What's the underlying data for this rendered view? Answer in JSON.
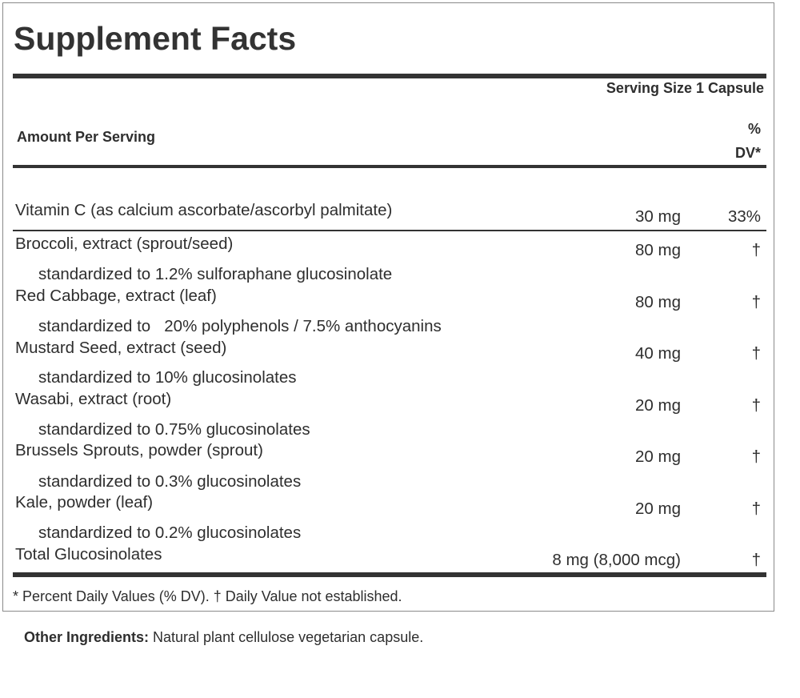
{
  "title": "Supplement Facts",
  "serving_size": "Serving Size 1 Capsule",
  "amount_per_serving_label": "Amount Per Serving",
  "dv_header": [
    "%",
    "DV*"
  ],
  "ingredients": [
    {
      "name": "Vitamin C (as calcium ascorbate/ascorbyl palmitate)",
      "amount": "30 mg",
      "dv": "33%",
      "standardized": ""
    },
    {
      "name": "Broccoli, extract (sprout/seed)",
      "amount": "80 mg",
      "dv": "†",
      "standardized": "standardized to 1.2% sulforaphane glucosinolate"
    },
    {
      "name": "Red Cabbage, extract (leaf)",
      "amount": "80 mg",
      "dv": "†",
      "standardized": "standardized to   20% polyphenols / 7.5% anthocyanins"
    },
    {
      "name": "Mustard Seed, extract (seed)",
      "amount": "40 mg",
      "dv": "†",
      "standardized": "standardized to 10% glucosinolates"
    },
    {
      "name": "Wasabi, extract (root)",
      "amount": "20 mg",
      "dv": "†",
      "standardized": "standardized to 0.75% glucosinolates"
    },
    {
      "name": "Brussels Sprouts, powder (sprout)",
      "amount": "20 mg",
      "dv": "†",
      "standardized": "standardized to 0.3% glucosinolates"
    },
    {
      "name": "Kale, powder (leaf)",
      "amount": "20 mg",
      "dv": "†",
      "standardized": "standardized to 0.2% glucosinolates"
    },
    {
      "name": "Total Glucosinolates",
      "amount": "8 mg (8,000 mcg)",
      "dv": "†",
      "standardized": ""
    }
  ],
  "footnote": "* Percent Daily Values (% DV). † Daily Value not established.",
  "other_ingredients": {
    "label": "Other Ingredients:",
    "text": " Natural plant cellulose vegetarian capsule."
  }
}
